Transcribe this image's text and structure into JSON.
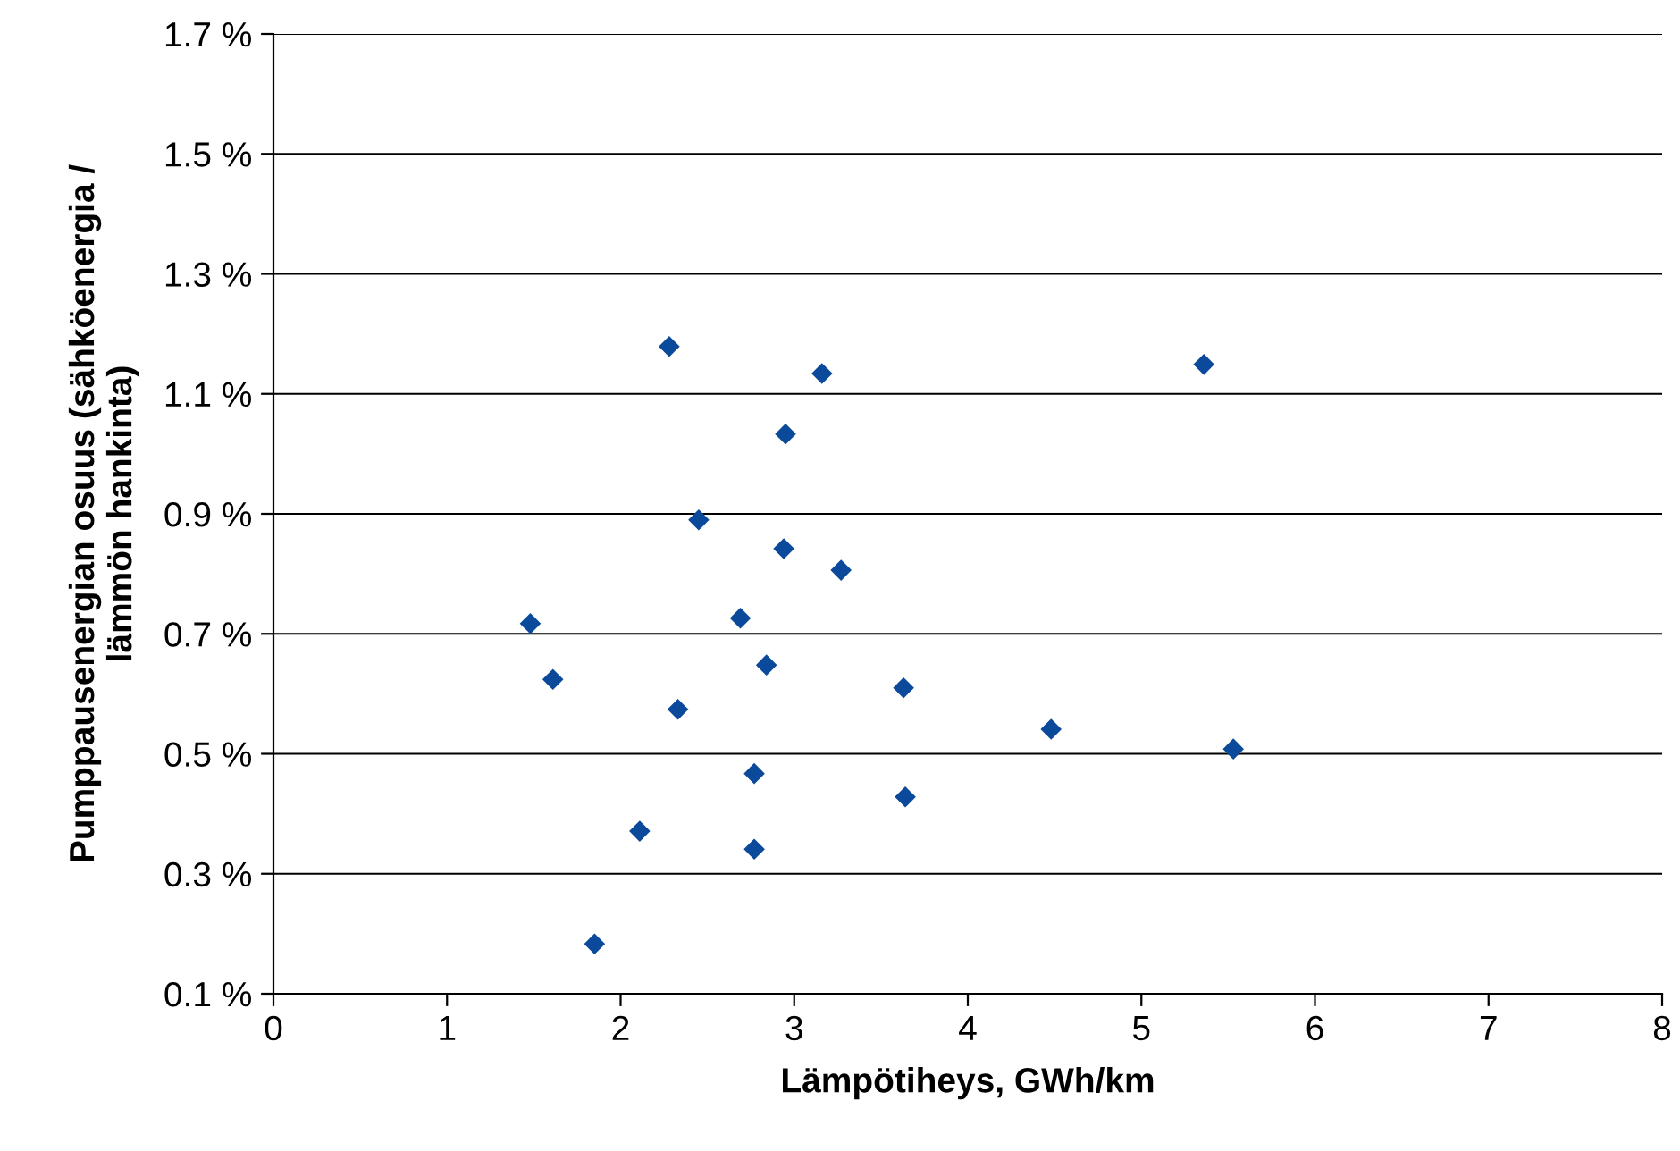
{
  "chart_data": {
    "type": "scatter",
    "xlabel": "Lämpötiheys, GWh/km",
    "ylabel": "Pumppausenergian osuus (sähköenergia /\nlämmön hankinta)",
    "series": [
      {
        "color": "#0b4a9a",
        "x": [
          1.48,
          1.61,
          1.85,
          2.11,
          2.28,
          2.33,
          2.45,
          2.69,
          2.77,
          2.77,
          2.84,
          2.95,
          2.94,
          3.16,
          3.27,
          3.63,
          3.64,
          4.48,
          5.36,
          5.53
        ],
        "values": [
          0.717,
          0.624,
          0.183,
          0.371,
          1.179,
          0.574,
          0.89,
          0.726,
          0.467,
          0.341,
          0.648,
          1.033,
          0.842,
          1.134,
          0.806,
          0.61,
          0.428,
          0.541,
          1.149,
          0.508
        ]
      }
    ],
    "xlim": [
      0,
      8
    ],
    "xticks": [
      0,
      1,
      2,
      3,
      4,
      5,
      6,
      7,
      8
    ],
    "ylim": [
      0.1,
      1.7
    ],
    "yticks": [
      {
        "value": 0.1,
        "label": "0.1 %"
      },
      {
        "value": 0.3,
        "label": "0.3 %"
      },
      {
        "value": 0.5,
        "label": "0.5 %"
      },
      {
        "value": 0.7,
        "label": "0.7 %"
      },
      {
        "value": 0.9,
        "label": "0.9 %"
      },
      {
        "value": 1.1,
        "label": "1.1 %"
      },
      {
        "value": 1.3,
        "label": "1.3 %"
      },
      {
        "value": 1.5,
        "label": "1.5 %"
      },
      {
        "value": 1.7,
        "label": "1.7 %"
      }
    ],
    "grid": "y",
    "marker": "diamond",
    "legend": false
  }
}
